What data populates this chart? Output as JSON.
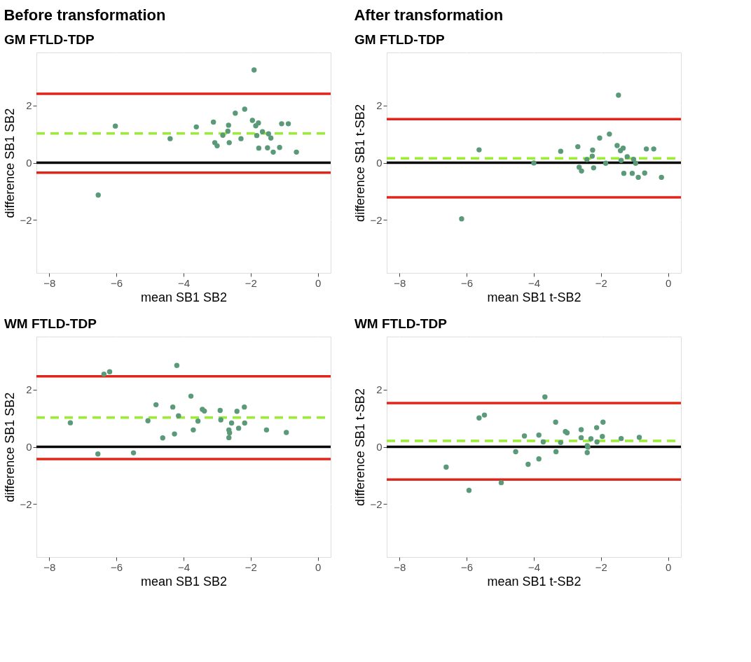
{
  "chart_data": [
    {
      "type": "scatter",
      "title": "GM FTLD-TDP",
      "annotations": [
        "Before transformation"
      ],
      "xlabel": "mean SB1 SB2",
      "ylabel": "difference SB1 SB2",
      "xlim": [
        -8.38,
        0.38
      ],
      "ylim": [
        -3.85,
        3.85
      ],
      "xticks": [
        -8,
        -6,
        -4,
        -2,
        0
      ],
      "yticks": [
        -2,
        0,
        2
      ],
      "grid": true,
      "marker": "circle",
      "x": [
        -1.9,
        -6.03,
        -6.54,
        -4.4,
        -3.62,
        -3.11,
        -3.07,
        -3.0,
        -2.83,
        -2.68,
        -2.66,
        -2.64,
        -2.46,
        -2.29,
        -2.18,
        -1.95,
        -1.85,
        -1.77,
        -1.82,
        -1.76,
        -1.65,
        -1.5,
        -1.47,
        -1.4,
        -1.33,
        -1.14,
        -1.08,
        -0.88,
        -0.64
      ],
      "series": [
        {
          "color": "#5a9a78",
          "values": [
            3.24,
            1.28,
            -1.13,
            0.84,
            1.25,
            1.42,
            0.7,
            0.59,
            0.96,
            1.1,
            1.31,
            0.7,
            1.73,
            0.84,
            1.87,
            1.48,
            1.29,
            1.39,
            0.95,
            0.51,
            1.08,
            0.52,
            1.01,
            0.86,
            0.37,
            0.53,
            1.36,
            1.36,
            0.37
          ]
        }
      ],
      "ref_lines": [
        {
          "axis": "y",
          "value": 0,
          "color": "#000000",
          "line_style": "solid"
        },
        {
          "axis": "y",
          "value": 2.41,
          "color": "#e0261a",
          "line_style": "solid"
        },
        {
          "axis": "y",
          "value": -0.35,
          "color": "#e0261a",
          "line_style": "solid"
        },
        {
          "axis": "y",
          "value": 1.02,
          "color": "#99ee33",
          "line_style": "dashed"
        }
      ]
    },
    {
      "type": "scatter",
      "title": "GM FTLD-TDP",
      "annotations": [
        "After transformation"
      ],
      "xlabel": "mean SB1 t-SB2",
      "ylabel": "difference SB1 t-SB2",
      "xlim": [
        -8.38,
        0.38
      ],
      "ylim": [
        -3.85,
        3.85
      ],
      "xticks": [
        -8,
        -6,
        -4,
        -2,
        0
      ],
      "yticks": [
        -2,
        0,
        2
      ],
      "grid": true,
      "marker": "circle",
      "x": [
        -1.48,
        -5.63,
        -6.15,
        -4.0,
        -3.2,
        -2.69,
        -2.65,
        -2.58,
        -2.42,
        -2.25,
        -2.26,
        -2.22,
        -2.04,
        -1.86,
        -1.75,
        -1.52,
        -1.42,
        -1.34,
        -1.4,
        -1.22,
        -1.32,
        -1.03,
        -0.97,
        -1.07,
        -0.89,
        -0.7,
        -0.65,
        -0.43,
        -0.2
      ],
      "series": [
        {
          "color": "#5a9a78",
          "values": [
            2.36,
            0.45,
            -1.96,
            -0.01,
            0.4,
            0.56,
            -0.16,
            -0.29,
            0.11,
            0.44,
            0.23,
            -0.18,
            0.86,
            -0.02,
            1.0,
            0.6,
            0.42,
            0.51,
            0.08,
            0.21,
            -0.37,
            0.12,
            -0.02,
            -0.37,
            -0.51,
            -0.36,
            0.48,
            0.48,
            -0.51
          ]
        }
      ],
      "ref_lines": [
        {
          "axis": "y",
          "value": 0,
          "color": "#000000",
          "line_style": "solid"
        },
        {
          "axis": "y",
          "value": 1.52,
          "color": "#e0261a",
          "line_style": "solid"
        },
        {
          "axis": "y",
          "value": -1.21,
          "color": "#e0261a",
          "line_style": "solid"
        },
        {
          "axis": "y",
          "value": 0.15,
          "color": "#99ee33",
          "line_style": "dashed"
        }
      ]
    },
    {
      "type": "scatter",
      "title": "WM FTLD-TDP",
      "xlabel": "mean SB1 SB2",
      "ylabel": "difference SB1 SB2",
      "xlim": [
        -8.38,
        0.38
      ],
      "ylim": [
        -3.85,
        3.85
      ],
      "xticks": [
        -8,
        -6,
        -4,
        -2,
        0
      ],
      "yticks": [
        -2,
        0,
        2
      ],
      "grid": true,
      "marker": "circle",
      "x": [
        -4.2,
        -6.37,
        -6.2,
        -7.37,
        -6.55,
        -5.49,
        -5.06,
        -4.82,
        -4.62,
        -4.32,
        -4.27,
        -4.15,
        -3.78,
        -3.71,
        -3.57,
        -3.44,
        -3.38,
        -2.91,
        -2.89,
        -2.65,
        -2.63,
        -2.65,
        -2.57,
        -2.41,
        -2.36,
        -2.19,
        -2.18,
        -1.53,
        -0.94
      ],
      "series": [
        {
          "color": "#5a9a78",
          "values": [
            2.84,
            2.54,
            2.62,
            0.84,
            -0.25,
            -0.21,
            0.91,
            1.47,
            0.31,
            1.39,
            0.45,
            1.08,
            1.77,
            0.59,
            0.9,
            1.31,
            1.25,
            1.27,
            0.94,
            0.59,
            0.49,
            0.32,
            0.83,
            1.24,
            0.65,
            1.39,
            0.83,
            0.59,
            0.5
          ]
        }
      ],
      "ref_lines": [
        {
          "axis": "y",
          "value": 0,
          "color": "#000000",
          "line_style": "solid"
        },
        {
          "axis": "y",
          "value": 2.46,
          "color": "#e0261a",
          "line_style": "solid"
        },
        {
          "axis": "y",
          "value": -0.43,
          "color": "#e0261a",
          "line_style": "solid"
        },
        {
          "axis": "y",
          "value": 1.02,
          "color": "#99ee33",
          "line_style": "dashed"
        }
      ]
    },
    {
      "type": "scatter",
      "title": "WM FTLD-TDP",
      "xlabel": "mean SB1 t-SB2",
      "ylabel": "difference SB1 t-SB2",
      "xlim": [
        -8.38,
        0.38
      ],
      "ylim": [
        -3.85,
        3.85
      ],
      "xticks": [
        -8,
        -6,
        -4,
        -2,
        0
      ],
      "yticks": [
        -2,
        0,
        2
      ],
      "grid": true,
      "marker": "circle",
      "x": [
        -3.67,
        -5.63,
        -5.47,
        -6.61,
        -5.93,
        -4.97,
        -4.54,
        -4.28,
        -4.17,
        -3.85,
        -3.85,
        -3.72,
        -3.35,
        -3.34,
        -3.2,
        -3.06,
        -3.01,
        -2.59,
        -2.59,
        -2.41,
        -2.39,
        -2.41,
        -2.3,
        -2.13,
        -2.12,
        -1.96,
        -1.94,
        -1.4,
        -0.86
      ],
      "series": [
        {
          "color": "#5a9a78",
          "values": [
            1.74,
            1.01,
            1.11,
            -0.71,
            -1.52,
            -1.25,
            -0.17,
            0.38,
            -0.61,
            0.41,
            -0.42,
            0.17,
            0.86,
            -0.17,
            0.15,
            0.53,
            0.49,
            0.6,
            0.32,
            0.04,
            -0.01,
            -0.2,
            0.28,
            0.67,
            0.17,
            0.36,
            0.86,
            0.29,
            0.33
          ]
        }
      ],
      "ref_lines": [
        {
          "axis": "y",
          "value": 0,
          "color": "#000000",
          "line_style": "solid"
        },
        {
          "axis": "y",
          "value": 1.53,
          "color": "#e0261a",
          "line_style": "solid"
        },
        {
          "axis": "y",
          "value": -1.14,
          "color": "#e0261a",
          "line_style": "solid"
        },
        {
          "axis": "y",
          "value": 0.21,
          "color": "#99ee33",
          "line_style": "dashed"
        }
      ]
    }
  ]
}
